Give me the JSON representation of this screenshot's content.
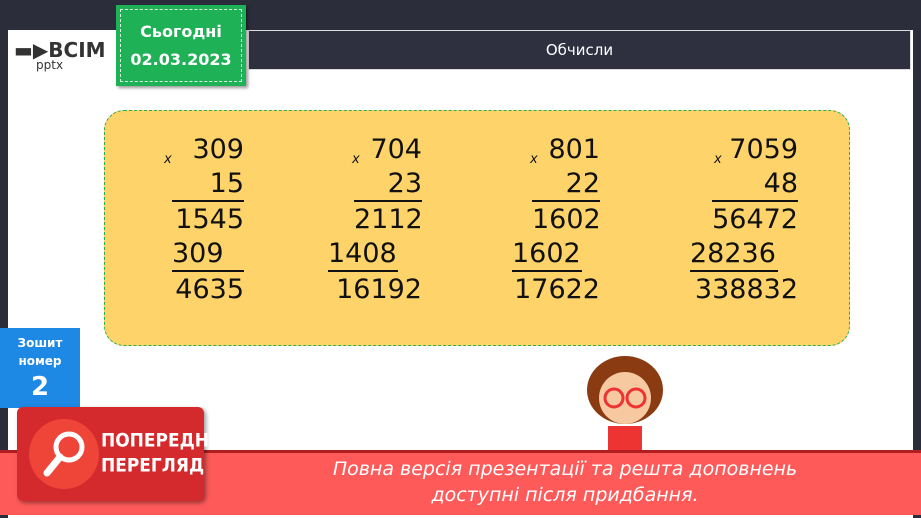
{
  "logo": {
    "name": "ВСІМ",
    "sub": "pptx"
  },
  "date_badge": {
    "label": "Сьогодні",
    "date": "02.03.2023"
  },
  "header": {
    "title": "Обчисли"
  },
  "calculations": [
    {
      "sign": "x",
      "a": "309",
      "b": "15",
      "p1": "1545",
      "p2": "309",
      "result": "4635"
    },
    {
      "sign": "x",
      "a": "704",
      "b": "23",
      "p1": "2112",
      "p2": "1408",
      "result": "16192"
    },
    {
      "sign": "x",
      "a": "801",
      "b": "22",
      "p1": "1602",
      "p2": "1602",
      "result": "17622"
    },
    {
      "sign": "x",
      "a": "7059",
      "b": "48",
      "p1": "56472",
      "p2": "28236",
      "result": "338832"
    }
  ],
  "notebook": {
    "label1": "Зошит",
    "label2": "номер",
    "number": "2"
  },
  "preview": {
    "line1": "ПОПЕРЕДНІЙ",
    "line2": "ПЕРЕГЛЯД"
  },
  "banner": {
    "line1": "Повна версія презентації та решта доповнень",
    "line2": "доступні після придбання."
  }
}
